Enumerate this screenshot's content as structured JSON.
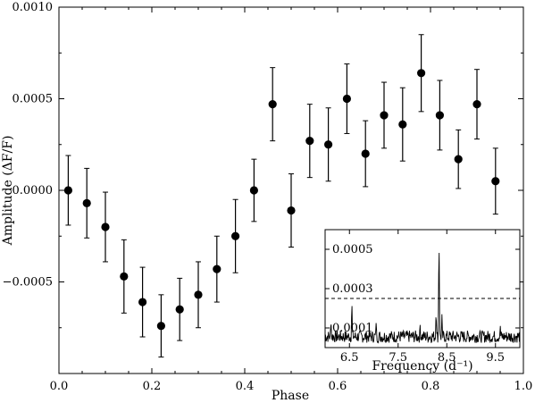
{
  "chart_data": [
    {
      "type": "scatter",
      "title": "",
      "xlabel": "Phase",
      "ylabel": "Amplitude (ΔF/F)",
      "xlim": [
        0.0,
        1.0
      ],
      "ylim": [
        -0.001,
        0.001
      ],
      "xticks": [
        0.0,
        0.2,
        0.4,
        0.6,
        0.8,
        1.0
      ],
      "xtick_labels": [
        "0.0",
        "0.2",
        "0.4",
        "0.6",
        "0.8",
        "1.0"
      ],
      "yticks": [
        -0.0005,
        0.0,
        0.0005,
        0.001
      ],
      "ytick_labels": [
        "−0.0005",
        "0.0000",
        "0.0005",
        "0.0010"
      ],
      "grid": false,
      "legend": "none",
      "marker_color": "#000000",
      "series": [
        {
          "x": [
            0.02,
            0.06,
            0.1,
            0.14,
            0.18,
            0.22,
            0.26,
            0.3,
            0.34,
            0.38,
            0.42,
            0.46,
            0.5,
            0.54,
            0.58,
            0.62,
            0.66,
            0.7,
            0.74,
            0.78,
            0.82,
            0.86,
            0.9,
            0.94
          ],
          "y": [
            0.0,
            -7e-05,
            -0.0002,
            -0.00047,
            -0.00061,
            -0.00074,
            -0.00065,
            -0.00057,
            -0.00043,
            -0.00025,
            0.0,
            0.00047,
            -0.00011,
            0.00027,
            0.00025,
            0.0005,
            0.0002,
            0.00041,
            0.00036,
            0.00064,
            0.00041,
            0.00017,
            0.00047,
            5e-05
          ],
          "yerr": [
            0.00019,
            0.00019,
            0.00019,
            0.0002,
            0.00019,
            0.00017,
            0.00017,
            0.00018,
            0.00018,
            0.0002,
            0.00017,
            0.0002,
            0.0002,
            0.0002,
            0.0002,
            0.00019,
            0.00018,
            0.00018,
            0.0002,
            0.00021,
            0.00019,
            0.00016,
            0.00019,
            0.00018
          ]
        }
      ]
    },
    {
      "type": "line",
      "title": "",
      "xlabel": "Frequency (d⁻¹)",
      "ylabel": "",
      "xlim": [
        6.0,
        10.0
      ],
      "ylim": [
        0.0,
        0.0006
      ],
      "xticks": [
        6.5,
        7.5,
        8.5,
        9.5
      ],
      "xtick_labels": [
        "6.5",
        "7.5",
        "8.5",
        "9.5"
      ],
      "yticks": [
        0.0001,
        0.0003,
        0.0005
      ],
      "ytick_labels": [
        "0.0001",
        "0.0003",
        "0.0005"
      ],
      "grid": false,
      "legend": "none",
      "threshold": 0.00025,
      "peaks": [
        {
          "x": 6.12,
          "y": 0.00013
        },
        {
          "x": 6.55,
          "y": 0.00022
        },
        {
          "x": 7.05,
          "y": 0.00013
        },
        {
          "x": 7.95,
          "y": 0.00012
        },
        {
          "x": 8.28,
          "y": 0.00017
        },
        {
          "x": 8.34,
          "y": 0.00051
        },
        {
          "x": 8.4,
          "y": 0.00017
        },
        {
          "x": 9.6,
          "y": 0.00011
        }
      ],
      "noise_level": 7e-05
    }
  ]
}
